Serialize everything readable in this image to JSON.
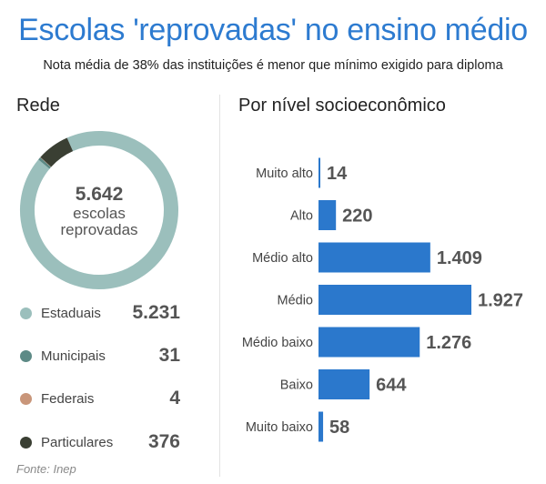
{
  "header": {
    "title": "Escolas 'reprovadas' no ensino médio",
    "subtitle": "Nota média de 38% das instituições é menor que mínimo exigido para diploma"
  },
  "footer": {
    "source": "Fonte: Inep"
  },
  "chart_data": [
    {
      "type": "pie",
      "title": "Rede",
      "center_value": "5.642",
      "center_label_line1": "escolas",
      "center_label_line2": "reprovadas",
      "categories": [
        "Estaduais",
        "Municipais",
        "Federais",
        "Particulares"
      ],
      "values": [
        5231,
        31,
        4,
        376
      ],
      "value_labels": [
        "5.231",
        "31",
        "4",
        "376"
      ],
      "colors": [
        "#9bbfbc",
        "#5d8a86",
        "#c9967a",
        "#3a3f33"
      ]
    },
    {
      "type": "bar",
      "orientation": "horizontal",
      "title": "Por nível socioeconômico",
      "categories": [
        "Muito alto",
        "Alto",
        "Médio alto",
        "Médio",
        "Médio baixo",
        "Baixo",
        "Muito baixo"
      ],
      "values": [
        14,
        220,
        1409,
        1927,
        1276,
        644,
        58
      ],
      "value_labels": [
        "14",
        "220",
        "1.409",
        "1.927",
        "1.276",
        "644",
        "58"
      ],
      "color": "#2b78cc",
      "xlim": [
        0,
        1927
      ]
    }
  ]
}
